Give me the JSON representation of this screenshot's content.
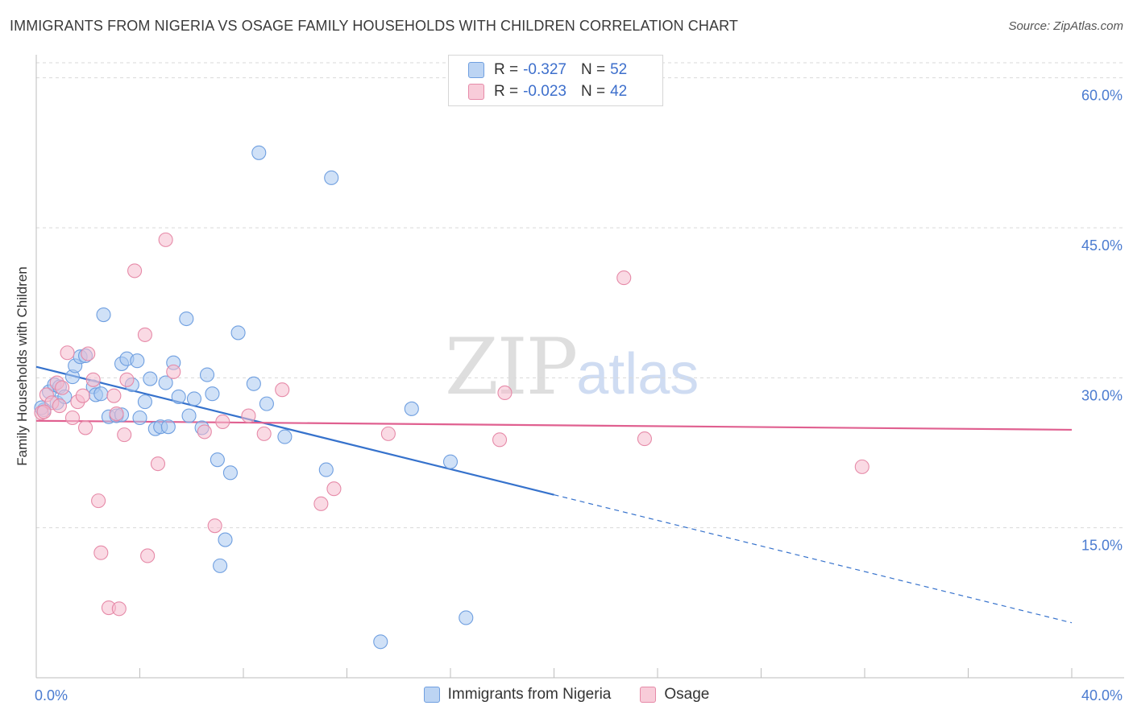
{
  "title": "IMMIGRANTS FROM NIGERIA VS OSAGE FAMILY HOUSEHOLDS WITH CHILDREN CORRELATION CHART",
  "source": "Source: ZipAtlas.com",
  "watermark": {
    "zip": "ZIP",
    "atlas": "atlas"
  },
  "colors": {
    "series1_fill": "#aac8f0",
    "series1_stroke": "#6f9fe0",
    "series1_line": "#3672cc",
    "series2_fill": "#f6bccd",
    "series2_stroke": "#e68aa8",
    "series2_line": "#e06090",
    "tick_text": "#4a7bd0",
    "grid": "#d9d9d9"
  },
  "legend": {
    "rows": [
      {
        "r_label": "R =",
        "r_value": "-0.327",
        "n_label": "N =",
        "n_value": "52"
      },
      {
        "r_label": "R =",
        "r_value": "-0.023",
        "n_label": "N =",
        "n_value": "42"
      }
    ],
    "placement": "top-center"
  },
  "chart_data": {
    "type": "scatter",
    "title": "IMMIGRANTS FROM NIGERIA VS OSAGE FAMILY HOUSEHOLDS WITH CHILDREN CORRELATION CHART",
    "xlabel": "",
    "ylabel": "Family Households with Children",
    "xlim": [
      0,
      40
    ],
    "ylim": [
      0,
      61.5
    ],
    "x_ticks": [
      0,
      4,
      8,
      12,
      16,
      20,
      24,
      28,
      32,
      36,
      40
    ],
    "x_tick_labels": [
      {
        "value": 0,
        "label": "0.0%"
      },
      {
        "value": 40,
        "label": "40.0%"
      }
    ],
    "y_ticks": [
      {
        "value": 15,
        "label": "15.0%"
      },
      {
        "value": 30,
        "label": "30.0%"
      },
      {
        "value": 45,
        "label": "45.0%"
      },
      {
        "value": 60,
        "label": "60.0%"
      }
    ],
    "grid": true,
    "series": [
      {
        "name": "Immigrants from Nigeria",
        "trend": {
          "x0": 0,
          "y0": 31.1,
          "x1": 20,
          "y1": 18.3,
          "dash_to_x": 40,
          "dash_to_y": 5.5
        },
        "points": [
          [
            0.3,
            26.8
          ],
          [
            0.5,
            28.6
          ],
          [
            0.7,
            29.3
          ],
          [
            0.8,
            27.5
          ],
          [
            0.9,
            29.1
          ],
          [
            1.1,
            28.1
          ],
          [
            1.4,
            30.1
          ],
          [
            1.5,
            31.2
          ],
          [
            1.7,
            32.1
          ],
          [
            1.9,
            32.2
          ],
          [
            2.2,
            29.1
          ],
          [
            2.3,
            28.3
          ],
          [
            2.5,
            28.4
          ],
          [
            2.6,
            36.3
          ],
          [
            2.8,
            26.1
          ],
          [
            3.1,
            26.2
          ],
          [
            3.3,
            26.3
          ],
          [
            3.3,
            31.4
          ],
          [
            3.5,
            31.9
          ],
          [
            3.7,
            29.3
          ],
          [
            3.9,
            31.7
          ],
          [
            4.0,
            26.0
          ],
          [
            4.2,
            27.6
          ],
          [
            4.4,
            29.9
          ],
          [
            4.6,
            24.9
          ],
          [
            4.8,
            25.1
          ],
          [
            5.0,
            29.5
          ],
          [
            5.1,
            25.1
          ],
          [
            5.3,
            31.5
          ],
          [
            5.5,
            28.1
          ],
          [
            5.8,
            35.9
          ],
          [
            5.9,
            26.2
          ],
          [
            6.1,
            27.9
          ],
          [
            6.4,
            25.0
          ],
          [
            6.6,
            30.3
          ],
          [
            6.8,
            28.4
          ],
          [
            7.0,
            21.8
          ],
          [
            7.1,
            11.2
          ],
          [
            7.3,
            13.8
          ],
          [
            7.5,
            20.5
          ],
          [
            7.8,
            34.5
          ],
          [
            8.4,
            29.4
          ],
          [
            8.6,
            52.5
          ],
          [
            8.9,
            27.4
          ],
          [
            9.6,
            24.1
          ],
          [
            11.2,
            20.8
          ],
          [
            11.4,
            50.0
          ],
          [
            13.3,
            3.6
          ],
          [
            14.5,
            26.9
          ],
          [
            16.0,
            21.6
          ],
          [
            16.6,
            6.0
          ],
          [
            0.2,
            27.0
          ]
        ]
      },
      {
        "name": "Osage",
        "trend": {
          "x0": 0,
          "y0": 25.7,
          "x1": 40,
          "y1": 24.8
        },
        "points": [
          [
            0.2,
            26.5
          ],
          [
            0.4,
            28.3
          ],
          [
            0.6,
            27.5
          ],
          [
            0.8,
            29.5
          ],
          [
            0.9,
            27.2
          ],
          [
            1.2,
            32.5
          ],
          [
            1.4,
            26.0
          ],
          [
            1.6,
            27.6
          ],
          [
            1.8,
            28.2
          ],
          [
            1.9,
            25.0
          ],
          [
            2.0,
            32.4
          ],
          [
            2.2,
            29.8
          ],
          [
            2.4,
            17.7
          ],
          [
            2.5,
            12.5
          ],
          [
            2.8,
            7.0
          ],
          [
            3.1,
            26.4
          ],
          [
            3.2,
            6.9
          ],
          [
            3.4,
            24.3
          ],
          [
            3.5,
            29.8
          ],
          [
            3.8,
            40.7
          ],
          [
            4.2,
            34.3
          ],
          [
            4.3,
            12.2
          ],
          [
            4.7,
            21.4
          ],
          [
            5.0,
            43.8
          ],
          [
            5.3,
            30.6
          ],
          [
            6.5,
            24.6
          ],
          [
            6.9,
            15.2
          ],
          [
            7.2,
            25.6
          ],
          [
            8.2,
            26.2
          ],
          [
            8.8,
            24.4
          ],
          [
            9.5,
            28.8
          ],
          [
            11.0,
            17.4
          ],
          [
            11.5,
            18.9
          ],
          [
            13.6,
            24.4
          ],
          [
            17.9,
            23.8
          ],
          [
            18.1,
            28.5
          ],
          [
            22.7,
            40.0
          ],
          [
            23.5,
            23.9
          ],
          [
            31.9,
            21.1
          ],
          [
            0.3,
            26.6
          ],
          [
            3.0,
            28.2
          ],
          [
            1.0,
            29.0
          ]
        ]
      }
    ]
  }
}
